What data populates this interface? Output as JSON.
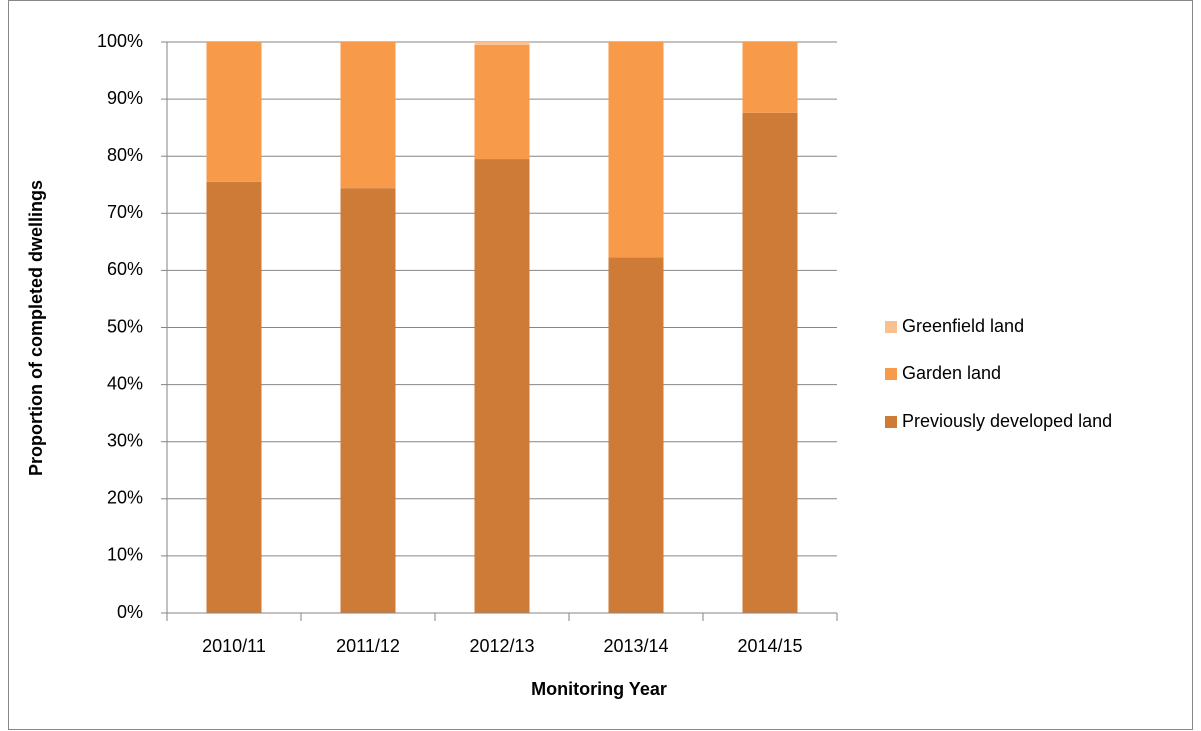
{
  "chart_data": {
    "type": "stacked_bar",
    "x_label": "Monitoring Year",
    "y_label": "Proportion of completed dwellings",
    "categories": [
      "2010/11",
      "2011/12",
      "2012/13",
      "2013/14",
      "2014/15"
    ],
    "series": [
      {
        "name": "Previously developed land",
        "color": "#cd7b37",
        "values": [
          75.5,
          74.4,
          79.5,
          62.3,
          87.6
        ]
      },
      {
        "name": "Garden land",
        "color": "#f79a4a",
        "values": [
          24.5,
          25.6,
          20.0,
          37.7,
          12.4
        ]
      },
      {
        "name": "Greenfield land",
        "color": "#fac090",
        "values": [
          0,
          0,
          0.5,
          0,
          0
        ]
      }
    ],
    "ylim": [
      0,
      100
    ],
    "yticks": [
      {
        "value": 0,
        "label": "0%"
      },
      {
        "value": 10,
        "label": "10%"
      },
      {
        "value": 20,
        "label": "20%"
      },
      {
        "value": 30,
        "label": "30%"
      },
      {
        "value": 40,
        "label": "40%"
      },
      {
        "value": 50,
        "label": "50%"
      },
      {
        "value": 60,
        "label": "60%"
      },
      {
        "value": 70,
        "label": "70%"
      },
      {
        "value": 80,
        "label": "80%"
      },
      {
        "value": 90,
        "label": "90%"
      },
      {
        "value": 100,
        "label": "100%"
      }
    ],
    "grid": true,
    "legend": "right"
  }
}
